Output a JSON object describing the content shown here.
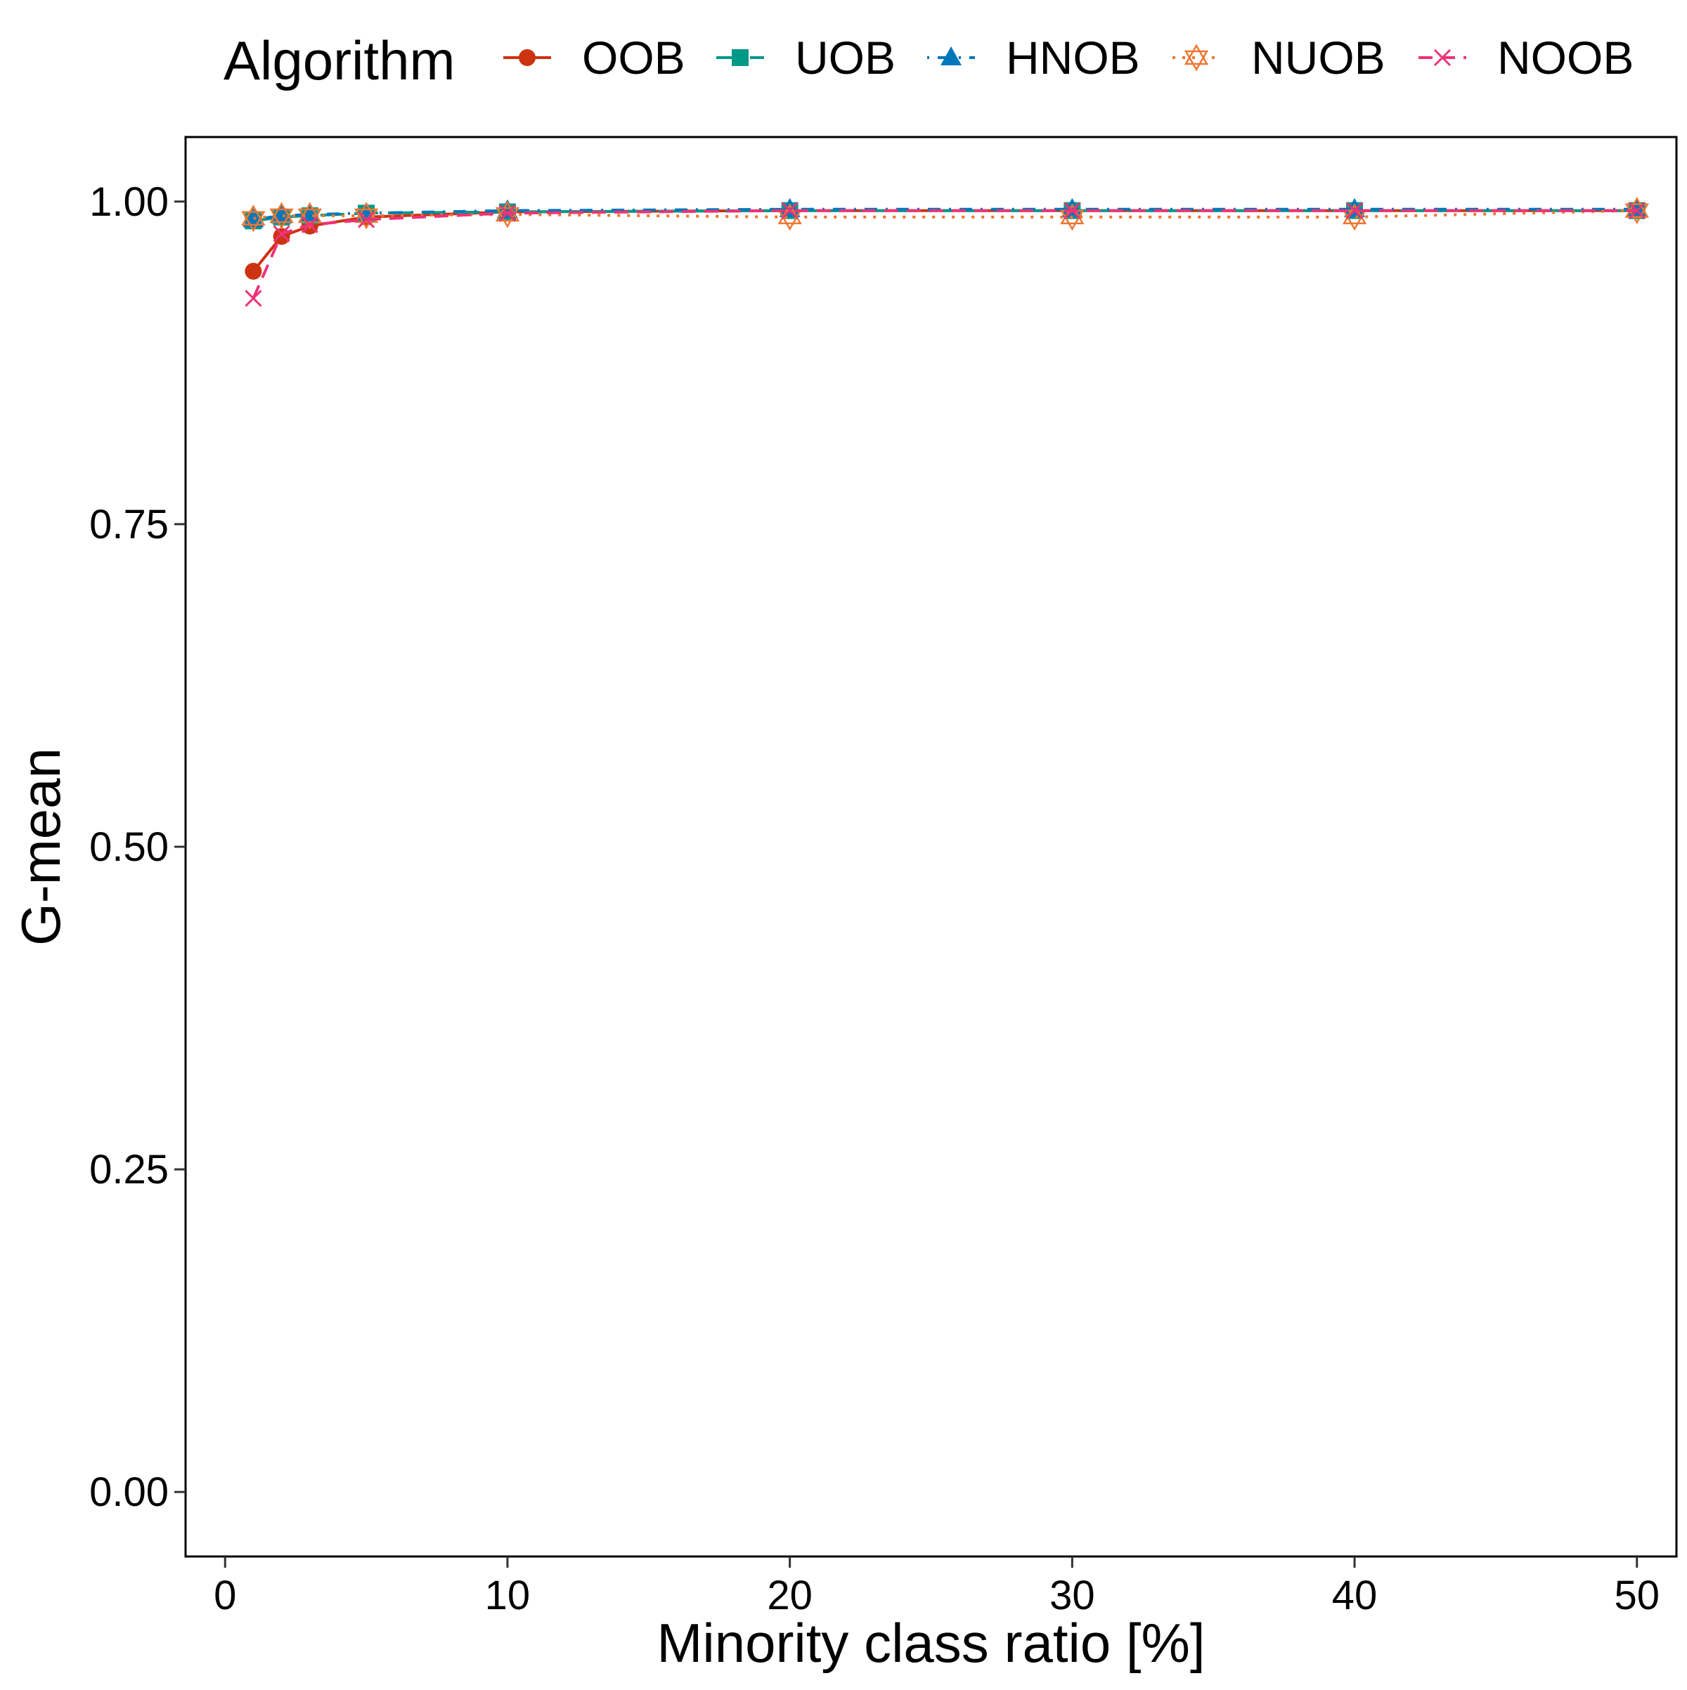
{
  "chart_data": {
    "type": "line",
    "xlabel": "Minority class ratio [%]",
    "ylabel": "G-mean",
    "xlim": [
      -1.4,
      51.4
    ],
    "ylim": [
      -0.05,
      1.05
    ],
    "x_ticks": [
      0,
      10,
      20,
      30,
      40,
      50
    ],
    "x_tick_labels": [
      "0",
      "10",
      "20",
      "30",
      "40",
      "50"
    ],
    "y_ticks": [
      0,
      0.25,
      0.5,
      0.75,
      1.0
    ],
    "y_tick_labels": [
      "0.00",
      "0.25",
      "0.50",
      "0.75",
      "1.00"
    ],
    "grid": false,
    "legend": {
      "title": "Algorithm",
      "placement": "top"
    },
    "x": [
      1,
      2,
      3,
      5,
      10,
      20,
      30,
      40,
      50
    ],
    "series": [
      {
        "name": "OOB",
        "values": [
          0.946,
          0.973,
          0.981,
          0.988,
          0.992,
          0.993,
          0.993,
          0.993,
          0.993
        ],
        "color": "#cc3311",
        "marker": "circle",
        "line": "solid"
      },
      {
        "name": "UOB",
        "values": [
          0.985,
          0.988,
          0.989,
          0.991,
          0.992,
          0.993,
          0.993,
          0.993,
          0.993
        ],
        "color": "#009988",
        "marker": "square",
        "line": "longdash"
      },
      {
        "name": "HNOB",
        "values": [
          0.986,
          0.989,
          0.99,
          0.991,
          0.993,
          0.994,
          0.994,
          0.994,
          0.994
        ],
        "color": "#0077bb",
        "marker": "triangle",
        "line": "dotdash"
      },
      {
        "name": "NUOB",
        "values": [
          0.987,
          0.989,
          0.989,
          0.989,
          0.99,
          0.988,
          0.988,
          0.988,
          0.993
        ],
        "color": "#ee7733",
        "marker": "star",
        "line": "dotted"
      },
      {
        "name": "NOOB",
        "values": [
          0.925,
          0.975,
          0.982,
          0.986,
          0.991,
          0.993,
          0.993,
          0.993,
          0.993
        ],
        "color": "#ee3377",
        "marker": "x",
        "line": "dashed"
      }
    ]
  }
}
